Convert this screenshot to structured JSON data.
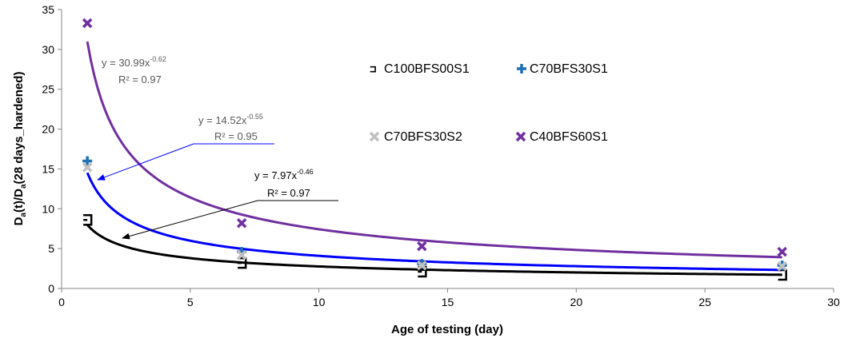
{
  "chart_data": {
    "type": "scatter",
    "title": "",
    "xlabel": "Age of testing (day)",
    "ylabel": "Da(t)/Da(28 days_hardened)",
    "ylabel_parts": [
      "D",
      "a",
      "(t)/D",
      "a",
      "(28 days_hardened)"
    ],
    "xlim": [
      0,
      30
    ],
    "ylim": [
      0,
      35
    ],
    "xticks": [
      0,
      5,
      10,
      15,
      20,
      25,
      30
    ],
    "yticks": [
      0,
      5,
      10,
      15,
      20,
      25,
      30,
      35
    ],
    "grid": false,
    "legend_position": "top-right",
    "series": [
      {
        "name": "C100BFS00S1",
        "marker": "bracket",
        "color": "#000000",
        "x": [
          1,
          7,
          14,
          28
        ],
        "y": [
          8.6,
          3.2,
          2.1,
          1.7
        ]
      },
      {
        "name": "C70BFS30S1",
        "marker": "plus",
        "color": "#1f6fb5",
        "x": [
          1,
          7,
          14,
          28
        ],
        "y": [
          16.0,
          4.6,
          3.1,
          2.9
        ]
      },
      {
        "name": "C70BFS30S2",
        "marker": "x",
        "color": "#c0c0c0",
        "x": [
          1,
          7,
          14,
          28
        ],
        "y": [
          15.2,
          4.2,
          2.9,
          2.8
        ]
      },
      {
        "name": "C40BFS60S1",
        "marker": "x",
        "color": "#7030a0",
        "x": [
          1,
          7,
          14,
          28
        ],
        "y": [
          33.3,
          8.2,
          5.3,
          4.6
        ]
      }
    ],
    "trendlines": [
      {
        "a": 7.97,
        "b": -0.46,
        "color": "#000000",
        "equation_prefix": "y = 7.97x",
        "equation_exponent": "-0.46",
        "r2": "R² = 0.97"
      },
      {
        "a": 14.52,
        "b": -0.55,
        "color": "#0000ff",
        "equation_prefix": "y = 14.52x",
        "equation_exponent": "-0.55",
        "r2": "R² = 0.95"
      },
      {
        "a": 30.99,
        "b": -0.62,
        "color": "#7030a0",
        "equation_prefix": "y = 30.99x",
        "equation_exponent": "-0.62",
        "r2": "R² = 0.97"
      }
    ],
    "trendline_x_range": [
      1,
      28
    ]
  }
}
